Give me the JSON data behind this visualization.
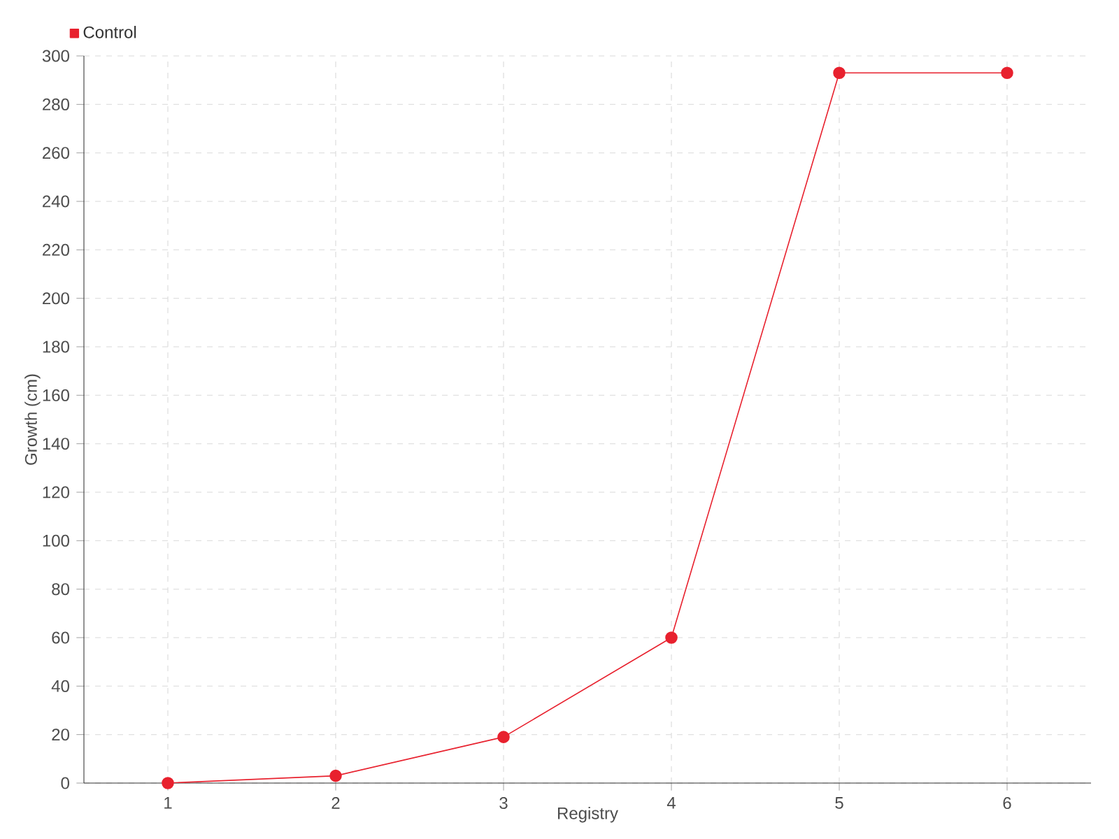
{
  "chart_data": {
    "type": "line",
    "xlabel": "Registry",
    "ylabel": "Growth (cm)",
    "categories": [
      "1",
      "2",
      "3",
      "4",
      "5",
      "6"
    ],
    "series": [
      {
        "name": "Control",
        "color": "#e8212e",
        "values": [
          0,
          3,
          19,
          60,
          293,
          293
        ]
      }
    ],
    "ylim": [
      0,
      300
    ],
    "yticks": [
      0,
      20,
      40,
      60,
      80,
      100,
      120,
      140,
      160,
      180,
      200,
      220,
      240,
      260,
      280,
      300
    ],
    "grid": true,
    "legend": "top left",
    "marker": "circle",
    "line_style": "solid"
  }
}
